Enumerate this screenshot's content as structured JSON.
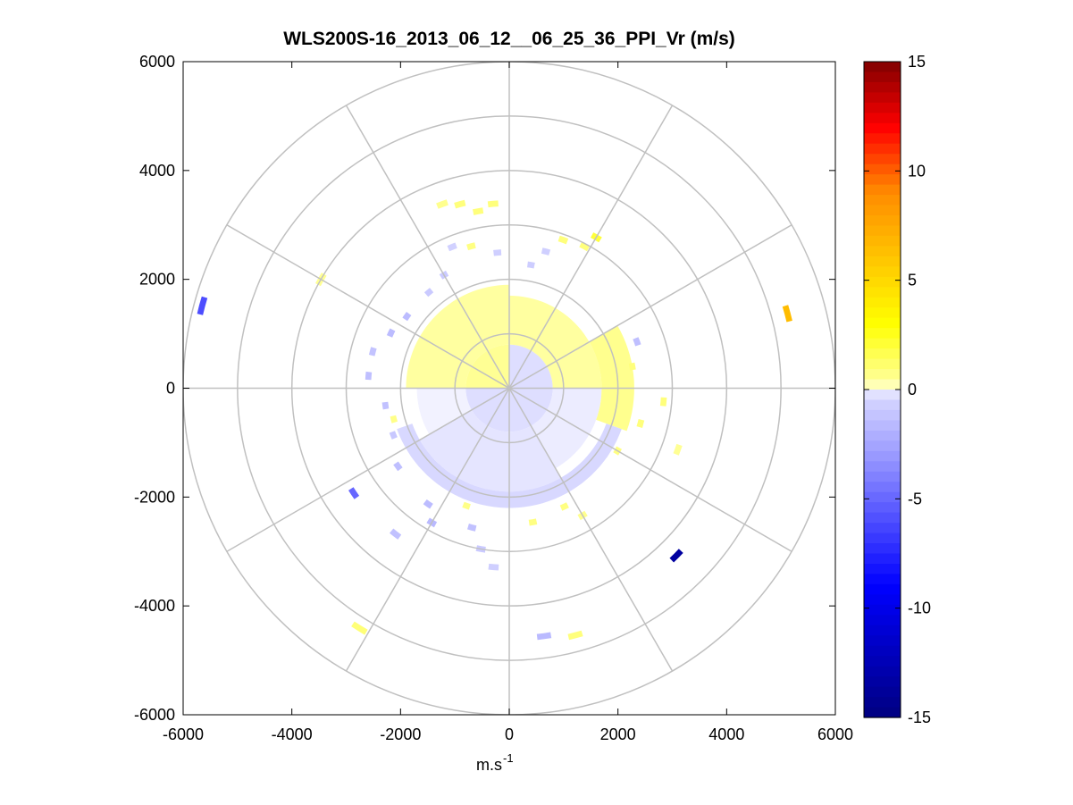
{
  "chart_data": {
    "type": "heatmap",
    "subtype": "polar-ppi",
    "title": "WLS200S-16_2013_06_12__06_25_36_PPI_Vr (m/s)",
    "xlabel": "m.s",
    "xlabel_superscript": "-1",
    "xlim": [
      -6000,
      6000
    ],
    "ylim": [
      -6000,
      6000
    ],
    "x_ticks": [
      -6000,
      -4000,
      -2000,
      0,
      2000,
      4000,
      6000
    ],
    "y_ticks": [
      -6000,
      -4000,
      -2000,
      0,
      2000,
      4000,
      6000
    ],
    "x_tick_labels": [
      "-6000",
      "-4000",
      "-2000",
      "0",
      "2000",
      "4000",
      "6000"
    ],
    "y_tick_labels": [
      "6000",
      "4000",
      "2000",
      "0",
      "-2000",
      "-4000",
      "-6000"
    ],
    "polar_grid": {
      "ring_step": 1000,
      "rings": [
        1000,
        2000,
        3000,
        4000,
        5000,
        6000
      ],
      "spoke_step_deg": 30,
      "color": "#c0c0c0"
    },
    "colorbar": {
      "clim": [
        -15,
        15
      ],
      "ticks": [
        15,
        10,
        5,
        0,
        -5,
        -10,
        -15
      ],
      "tick_labels": [
        "15",
        "10",
        "5",
        "0",
        "-5",
        "-10",
        "-15"
      ],
      "colormap": "blue-white-yellow-red",
      "colors": [
        "#000080",
        "#0000ff",
        "#9a9aff",
        "#d8d8ff",
        "#ffffff",
        "#ffffa0",
        "#ffff00",
        "#ff8c00",
        "#ff0000",
        "#800000"
      ]
    },
    "fields": [
      {
        "az_from": 0,
        "az_to": 270,
        "r_from": 0,
        "r_to": 800,
        "value": -0.25
      },
      {
        "az_from": 270,
        "az_to": 360,
        "r_from": 0,
        "r_to": 800,
        "value": 0.5
      },
      {
        "az_from": 0,
        "az_to": 90,
        "r_from": 800,
        "r_to": 1700,
        "value": 0.3
      },
      {
        "az_from": 90,
        "az_to": 150,
        "r_from": 800,
        "r_to": 1700,
        "value": -0.15
      },
      {
        "az_from": 150,
        "az_to": 240,
        "r_from": 800,
        "r_to": 1900,
        "value": -0.2
      },
      {
        "az_from": 240,
        "az_to": 270,
        "r_from": 800,
        "r_to": 1700,
        "value": -0.1
      },
      {
        "az_from": 270,
        "az_to": 360,
        "r_from": 800,
        "r_to": 1900,
        "value": 0.3
      },
      {
        "az_from": 60,
        "az_to": 110,
        "r_from": 1700,
        "r_to": 2300,
        "value": 0.6
      },
      {
        "az_from": 110,
        "az_to": 250,
        "r_from": 1900,
        "r_to": 2200,
        "value": -0.3
      }
    ],
    "cells": [
      {
        "az": 350,
        "r": 3300,
        "value": 0.9
      },
      {
        "az": 355,
        "r": 3400,
        "value": 0.9
      },
      {
        "az": 345,
        "r": 3500,
        "value": 0.9
      },
      {
        "az": 340,
        "r": 3600,
        "value": 0.6
      },
      {
        "az": 20,
        "r": 2900,
        "value": 0.9
      },
      {
        "az": 28,
        "r": 2950,
        "value": 0.9
      },
      {
        "az": 30,
        "r": 3200,
        "value": 2.0
      },
      {
        "az": 15,
        "r": 2600,
        "value": -0.7
      },
      {
        "az": 10,
        "r": 2300,
        "value": -0.8
      },
      {
        "az": 355,
        "r": 2500,
        "value": -0.7
      },
      {
        "az": 345,
        "r": 2700,
        "value": 0.8
      },
      {
        "az": 338,
        "r": 2800,
        "value": -0.6
      },
      {
        "az": 330,
        "r": 2400,
        "value": -0.9
      },
      {
        "az": 320,
        "r": 2300,
        "value": -0.9
      },
      {
        "az": 305,
        "r": 2300,
        "value": -1.5
      },
      {
        "az": 295,
        "r": 2400,
        "value": -1.5
      },
      {
        "az": 285,
        "r": 2600,
        "value": -1.2
      },
      {
        "az": 275,
        "r": 2600,
        "value": -1.4
      },
      {
        "az": 285,
        "r": 5850,
        "value": -6.0
      },
      {
        "az": 75,
        "r": 5300,
        "value": 6.5
      },
      {
        "az": 70,
        "r": 2500,
        "value": -1.4
      },
      {
        "az": 80,
        "r": 2300,
        "value": 0.9
      },
      {
        "az": 95,
        "r": 2850,
        "value": 0.9
      },
      {
        "az": 105,
        "r": 2500,
        "value": 0.9
      },
      {
        "az": 110,
        "r": 3300,
        "value": 0.5
      },
      {
        "az": 120,
        "r": 2300,
        "value": 0.8
      },
      {
        "az": 135,
        "r": 4350,
        "value": -13.5
      },
      {
        "az": 150,
        "r": 2700,
        "value": 0.6
      },
      {
        "az": 155,
        "r": 2400,
        "value": 0.8
      },
      {
        "az": 165,
        "r": 4700,
        "value": 0.9
      },
      {
        "az": 172,
        "r": 4600,
        "value": -1.6
      },
      {
        "az": 170,
        "r": 2500,
        "value": 0.8
      },
      {
        "az": 185,
        "r": 3300,
        "value": -0.7
      },
      {
        "az": 190,
        "r": 3000,
        "value": -0.9
      },
      {
        "az": 195,
        "r": 2650,
        "value": -1.3
      },
      {
        "az": 200,
        "r": 2300,
        "value": 0.7
      },
      {
        "az": 210,
        "r": 2850,
        "value": -1.6
      },
      {
        "az": 215,
        "r": 2600,
        "value": -1.5
      },
      {
        "az": 218,
        "r": 3400,
        "value": -1.3
      },
      {
        "az": 212,
        "r": 5200,
        "value": 1.0
      },
      {
        "az": 235,
        "r": 2500,
        "value": -1.4
      },
      {
        "az": 236,
        "r": 3450,
        "value": -5.0
      },
      {
        "az": 248,
        "r": 2300,
        "value": -1.0
      },
      {
        "az": 255,
        "r": 2200,
        "value": 0.7
      },
      {
        "az": 262,
        "r": 2300,
        "value": -1.3
      },
      {
        "az": 300,
        "r": 4000,
        "value": 0.5
      }
    ]
  }
}
